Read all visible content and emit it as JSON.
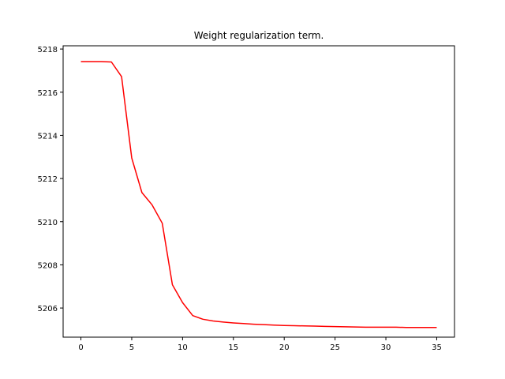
{
  "chart_data": {
    "type": "line",
    "title": "Weight regularization term.",
    "xlabel": "",
    "ylabel": "",
    "xlim": [
      -1.75,
      36.75
    ],
    "ylim": [
      5204.65,
      5218.15
    ],
    "grid": false,
    "legend": "none",
    "x_ticks": [
      0,
      5,
      10,
      15,
      20,
      25,
      30,
      35
    ],
    "y_ticks": [
      5206,
      5208,
      5210,
      5212,
      5214,
      5216,
      5218
    ],
    "series": [
      {
        "color": "#ff0000",
        "x": [
          0,
          1,
          2,
          3,
          4,
          5,
          6,
          7,
          8,
          9,
          10,
          11,
          12,
          13,
          14,
          15,
          16,
          17,
          18,
          19,
          20,
          21,
          22,
          23,
          24,
          25,
          26,
          27,
          28,
          29,
          30,
          31,
          32,
          33,
          34,
          35
        ],
        "y": [
          5217.42,
          5217.42,
          5217.42,
          5217.4,
          5216.72,
          5212.95,
          5211.35,
          5210.78,
          5209.93,
          5207.08,
          5206.25,
          5205.65,
          5205.48,
          5205.4,
          5205.35,
          5205.31,
          5205.28,
          5205.25,
          5205.23,
          5205.21,
          5205.19,
          5205.18,
          5205.17,
          5205.16,
          5205.15,
          5205.14,
          5205.13,
          5205.12,
          5205.11,
          5205.11,
          5205.11,
          5205.11,
          5205.1,
          5205.1,
          5205.1,
          5205.1
        ]
      }
    ]
  }
}
